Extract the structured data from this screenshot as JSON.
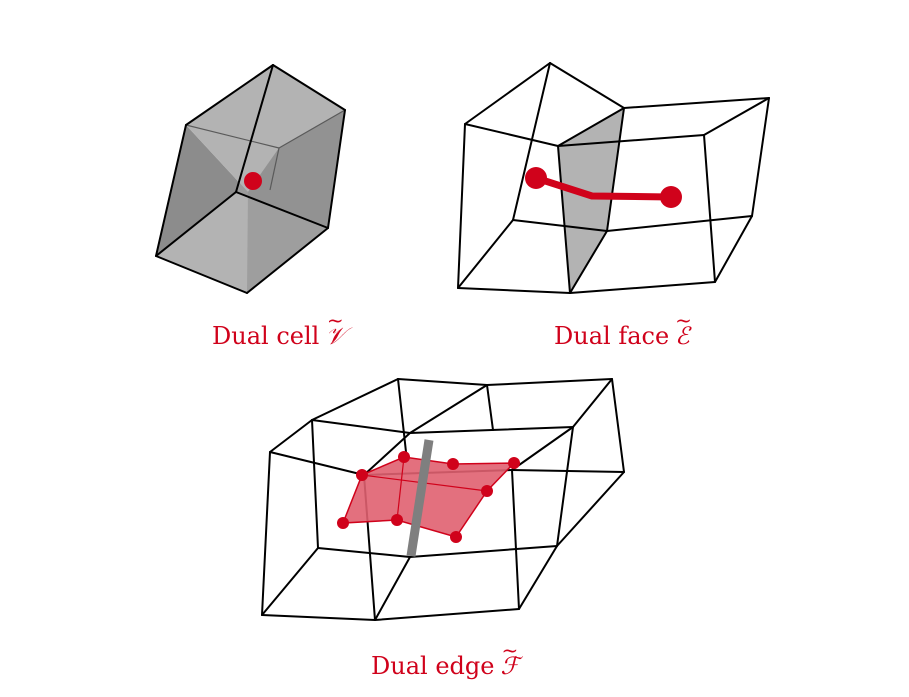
{
  "colors": {
    "accent": "#d0021b",
    "face_gray_light": "#b3b3b3",
    "face_gray_dark": "#8c8c8c",
    "dual_face_fill": "#e06070",
    "dual_edge_bar": "#7f7f7f",
    "line": "#000000"
  },
  "panels": {
    "dual_cell": {
      "caption": "Dual cell",
      "symbol": "𝒱",
      "tilde": "~"
    },
    "dual_face": {
      "caption": "Dual face",
      "symbol": "ℰ",
      "tilde": "~"
    },
    "dual_edge": {
      "caption": "Dual edge",
      "symbol": "ℱ",
      "tilde": "~"
    }
  }
}
